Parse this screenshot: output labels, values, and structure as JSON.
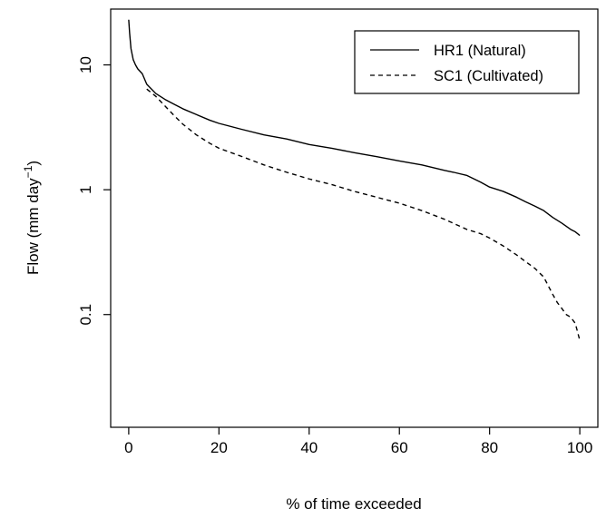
{
  "chart_data": {
    "type": "line",
    "title": "",
    "xlabel": "% of time exceeded",
    "ylabel": {
      "main": "Flow (mm day",
      "superscript": "−1",
      "close": ")"
    },
    "xlim": [
      -4,
      104
    ],
    "ylim": [
      0.0125,
      28
    ],
    "y_scale": "log",
    "grid": false,
    "legend_position": "top-right",
    "x_ticks": [
      0,
      20,
      40,
      60,
      80,
      100
    ],
    "x_tick_labels": [
      "0",
      "20",
      "40",
      "60",
      "80",
      "100"
    ],
    "y_ticks": [
      0.1,
      1,
      10
    ],
    "y_tick_labels": [
      "0.1",
      "1",
      "10"
    ],
    "series": [
      {
        "name": "HR1 (Natural)",
        "line_style": "solid",
        "color": "#000000",
        "x": [
          0,
          0.2,
          0.5,
          1,
          1.5,
          2,
          3,
          4,
          6,
          8,
          10,
          12,
          15,
          18,
          20,
          25,
          30,
          35,
          40,
          45,
          50,
          55,
          60,
          65,
          70,
          72,
          75,
          78,
          80,
          83,
          86,
          88,
          90,
          92,
          94,
          96,
          98,
          99,
          100
        ],
        "y": [
          23,
          18,
          13.5,
          11,
          10,
          9.3,
          8.5,
          7,
          5.9,
          5.3,
          4.85,
          4.45,
          4.0,
          3.6,
          3.4,
          3.05,
          2.75,
          2.55,
          2.3,
          2.15,
          1.98,
          1.84,
          1.7,
          1.58,
          1.43,
          1.38,
          1.3,
          1.15,
          1.05,
          0.97,
          0.87,
          0.8,
          0.74,
          0.68,
          0.6,
          0.54,
          0.48,
          0.46,
          0.43
        ]
      },
      {
        "name": "SC1 (Cultivated)",
        "line_style": "dashed",
        "color": "#000000",
        "x": [
          4,
          6,
          8,
          10,
          12,
          15,
          18,
          20,
          25,
          30,
          35,
          40,
          45,
          50,
          55,
          60,
          65,
          70,
          75,
          78,
          80,
          83,
          86,
          88,
          90,
          92,
          93,
          94,
          95,
          96,
          97,
          98,
          99,
          100
        ],
        "y": [
          6.4,
          5.6,
          4.7,
          3.95,
          3.35,
          2.75,
          2.35,
          2.15,
          1.85,
          1.58,
          1.38,
          1.22,
          1.1,
          0.97,
          0.87,
          0.78,
          0.68,
          0.58,
          0.48,
          0.445,
          0.41,
          0.355,
          0.3,
          0.265,
          0.235,
          0.2,
          0.17,
          0.145,
          0.125,
          0.112,
          0.1,
          0.095,
          0.085,
          0.062
        ]
      }
    ]
  }
}
